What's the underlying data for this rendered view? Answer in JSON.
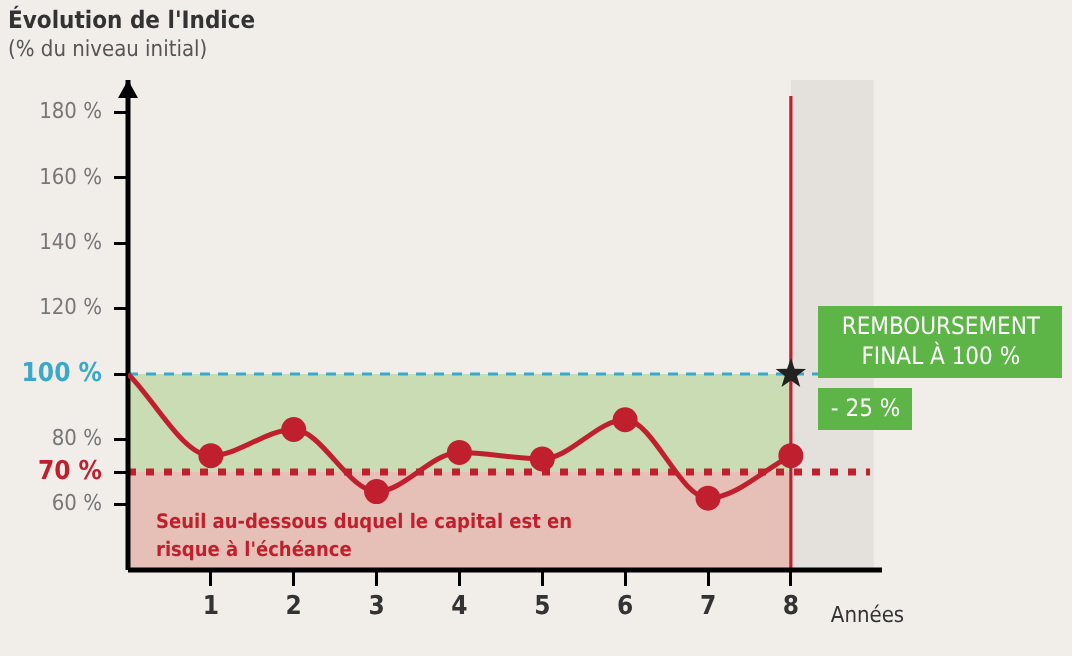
{
  "chart_data": {
    "type": "line",
    "title": "Évolution de l'Indice",
    "subtitle": "(% du niveau initial)",
    "xlabel": "Années",
    "x": [
      0,
      1,
      2,
      3,
      4,
      5,
      6,
      7,
      8
    ],
    "series": [
      {
        "color": "#c0202e",
        "values": [
          100,
          75,
          83,
          64,
          76,
          74,
          86,
          62,
          75
        ],
        "marker": "circle"
      },
      {
        "type": "scatter",
        "color": "#222222",
        "x": [
          8
        ],
        "values": [
          100
        ],
        "marker": "star"
      }
    ],
    "xlim": [
      0,
      9.1
    ],
    "xticks": [
      1,
      2,
      3,
      4,
      5,
      6,
      7,
      8
    ],
    "ylim": [
      40,
      190
    ],
    "yticks": [
      {
        "value": 60,
        "label": "60 %"
      },
      {
        "value": 70,
        "label": "70 %"
      },
      {
        "value": 80,
        "label": "80 %"
      },
      {
        "value": 100,
        "label": "100 %"
      },
      {
        "value": 120,
        "label": "120 %"
      },
      {
        "value": 140,
        "label": "140 %"
      },
      {
        "value": 160,
        "label": "160 %"
      },
      {
        "value": 180,
        "label": "180 %"
      }
    ],
    "bands": [
      {
        "axis": "y",
        "from": 70,
        "to": 100,
        "color": "#c9dcb4"
      },
      {
        "axis": "y",
        "from": 40,
        "to": 70,
        "color": "#e6c0b6",
        "label": "Seuil au-dessous duquel le capital est en risque à l'échéance"
      },
      {
        "axis": "x",
        "from": 8,
        "to": 9,
        "color": "#e4e1dc"
      }
    ],
    "ref_lines": [
      {
        "axis": "y",
        "value": 100,
        "color": "#3aa8c8",
        "line_style": "dashed"
      },
      {
        "axis": "y",
        "value": 70,
        "color": "#c0202e",
        "line_style": "dotted"
      },
      {
        "axis": "x",
        "value": 8,
        "color": "#c0202e",
        "line_style": "solid"
      }
    ],
    "annotations": [
      {
        "text": "REMBOURSEMENT FINAL À 100 %",
        "x": 8,
        "y": 100
      },
      {
        "text": "- 25 %",
        "x": 8,
        "y": 75
      }
    ],
    "grid": false,
    "legend": false,
    "line_style": "solid"
  }
}
